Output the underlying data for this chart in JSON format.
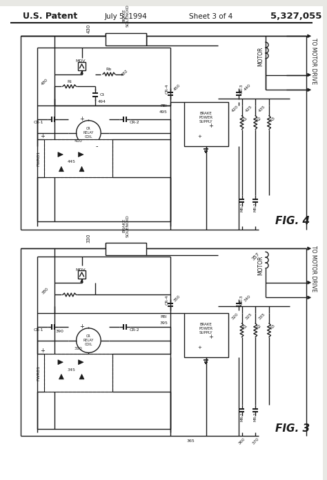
{
  "bg": "#e8e8e4",
  "lc": "#1a1a1a",
  "tc": "#1a1a1a",
  "title_left": "U.S. Patent",
  "title_date": "July 5, 1994",
  "title_sheet": "Sheet 3 of 4",
  "title_number": "5,327,055",
  "fig4_label": "FIG. 4",
  "fig3_label": "FIG. 3"
}
